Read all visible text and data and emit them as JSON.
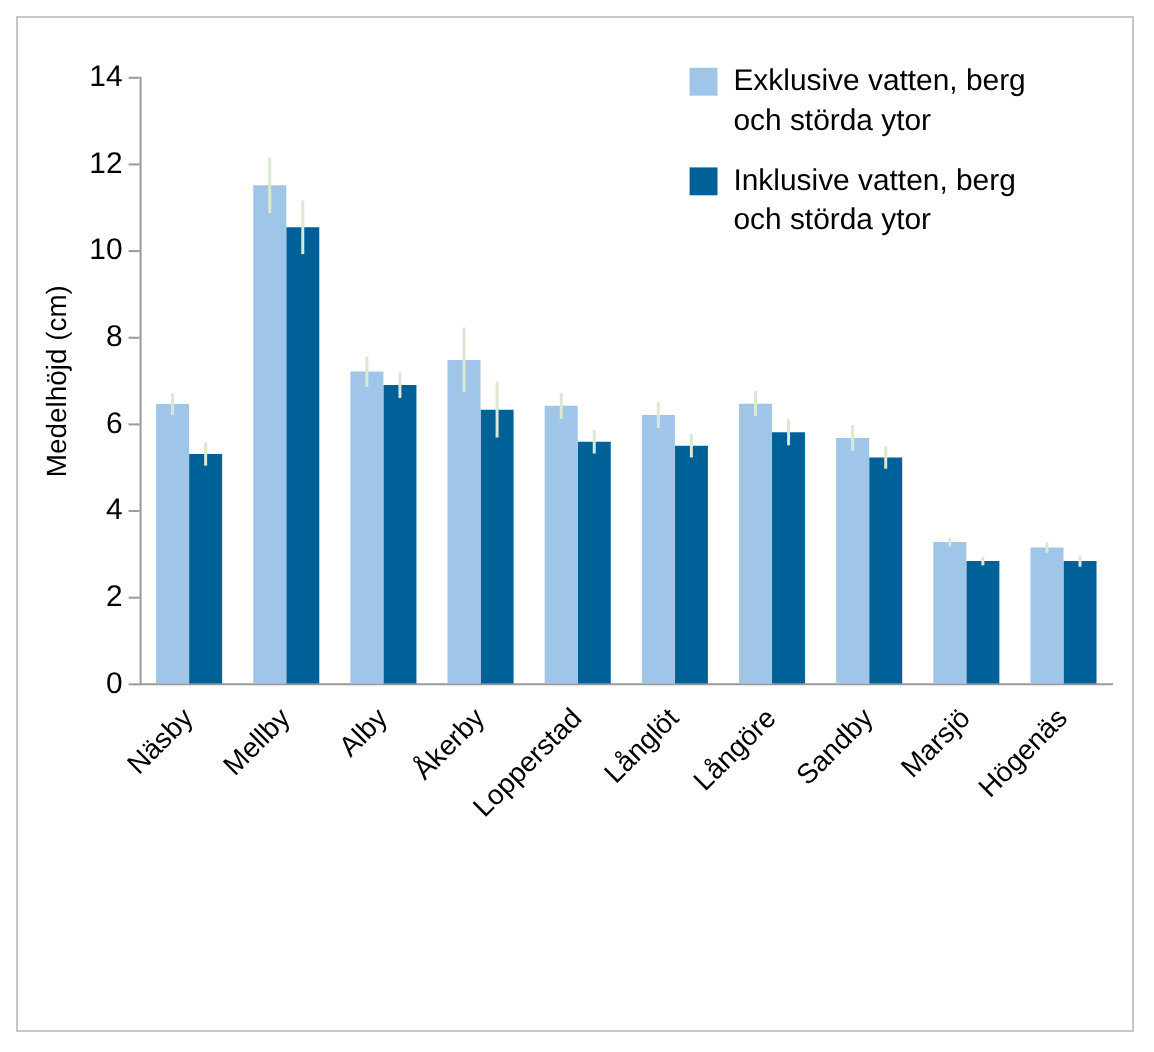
{
  "chart_data": {
    "type": "bar",
    "ylabel": "Medelhöjd (cm)",
    "categories": [
      "Näsby",
      "Mellby",
      "Alby",
      "Åkerby",
      "Lopperstad",
      "Långlöt",
      "Långöre",
      "Sandby",
      "Marsjö",
      "Högenäs"
    ],
    "series": [
      {
        "name": "Exklusive vatten, berg och störda ytor",
        "color": "#9fc5e8",
        "values": [
          6.47,
          11.52,
          7.22,
          7.49,
          6.43,
          6.22,
          6.48,
          5.69,
          3.29,
          3.16
        ],
        "errors": [
          0.25,
          0.64,
          0.35,
          0.75,
          0.3,
          0.3,
          0.29,
          0.3,
          0.1,
          0.12
        ]
      },
      {
        "name": "Inklusive vatten, berg och störda ytor",
        "color": "#006199",
        "values": [
          5.32,
          10.55,
          6.91,
          6.34,
          5.6,
          5.51,
          5.82,
          5.24,
          2.85,
          2.85
        ],
        "errors": [
          0.27,
          0.62,
          0.3,
          0.64,
          0.27,
          0.27,
          0.3,
          0.26,
          0.1,
          0.13
        ]
      }
    ],
    "ylim": [
      0,
      14
    ],
    "yticks": [
      0,
      2,
      4,
      6,
      8,
      10,
      12,
      14
    ],
    "grid": false,
    "legend": "top right"
  }
}
